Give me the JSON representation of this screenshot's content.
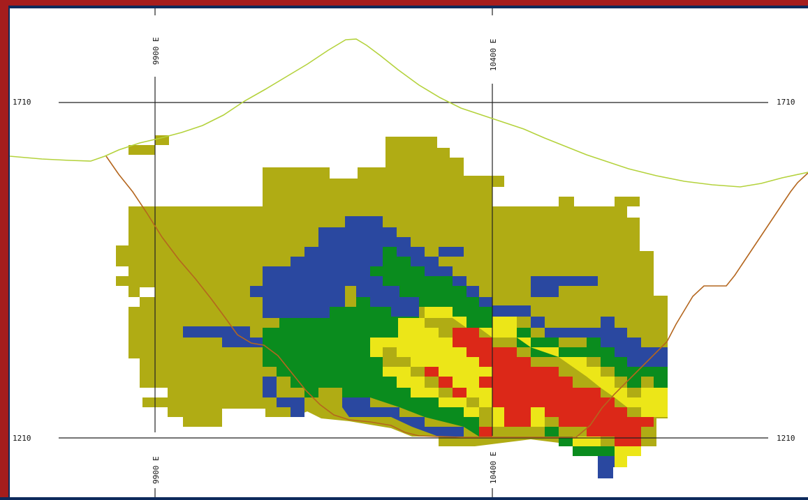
{
  "section": {
    "easting_labels": [
      {
        "value": 9900,
        "text": "9900 E"
      },
      {
        "value": 10400,
        "text": "10400 E"
      }
    ],
    "elevation_labels": [
      {
        "value": 1710,
        "text": "1710"
      },
      {
        "value": 1210,
        "text": "1210"
      }
    ],
    "colors": {
      "frame": "#0d2a5c",
      "frame_accent": "#a51d1d",
      "topography": "#b4d23c",
      "pit_outline": "#b4661e",
      "grid": "#222222",
      "grade_waste": "#b0ac14",
      "grade_low": "#2a48a0",
      "grade_medium": "#0a8c1e",
      "grade_high": "#ece618",
      "grade_very_high": "#dc2818"
    }
  }
}
